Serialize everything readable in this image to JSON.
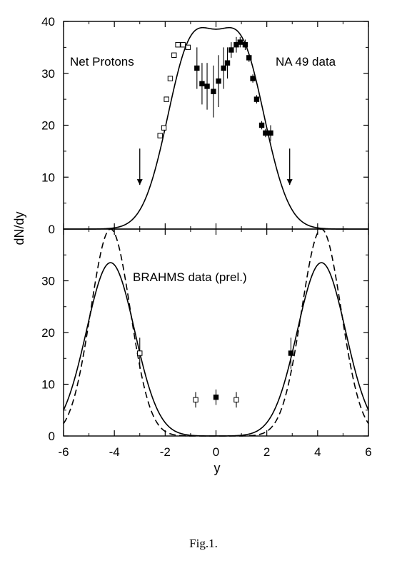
{
  "caption": "Fig.1.",
  "chart_data": [
    {
      "type": "scatter",
      "panel": "top",
      "label_left": "Net Protons",
      "label_right": "NA 49 data",
      "xlim": [
        -6,
        6
      ],
      "ylim": [
        0,
        40
      ],
      "yticks": [
        0,
        10,
        20,
        30,
        40
      ],
      "ylabel": "dN/dy",
      "grid": false,
      "series": [
        {
          "marker": "filled-square",
          "x": [
            -0.75,
            -0.55,
            -0.35,
            -0.1,
            0.1,
            0.3,
            0.45,
            0.6,
            0.8,
            0.95,
            1.15,
            1.3,
            1.45,
            1.6,
            1.8,
            1.95,
            2.15
          ],
          "y": [
            31,
            28,
            27.5,
            26.5,
            28.5,
            31,
            32,
            34.5,
            35.5,
            36,
            35.5,
            33,
            29,
            25,
            20,
            18.5,
            18.5
          ],
          "yerr": [
            4,
            4,
            4.5,
            5,
            5,
            4,
            3,
            1.5,
            1.5,
            1,
            1,
            0.8,
            0.8,
            0.8,
            0.8,
            0.8,
            1.5
          ]
        },
        {
          "marker": "open-square",
          "x": [
            -2.2,
            -2.05,
            -1.95,
            -1.8,
            -1.65,
            -1.5,
            -1.3,
            -1.1
          ],
          "y": [
            18,
            19.5,
            25,
            29,
            33.5,
            35.5,
            35.5,
            35
          ],
          "yerr": [
            0,
            0,
            0,
            0,
            0,
            0,
            0,
            0
          ]
        },
        {
          "line": "solid-fit",
          "x": [],
          "y": []
        }
      ],
      "arrows_at_x": [
        -3.0,
        2.9
      ]
    },
    {
      "type": "scatter",
      "panel": "bottom",
      "label": "BRAHMS data (prel.)",
      "xlim": [
        -6,
        6
      ],
      "ylim": [
        0,
        40
      ],
      "yticks": [
        0,
        10,
        20,
        30
      ],
      "xticks": [
        -6,
        -4,
        -2,
        0,
        2,
        4,
        6
      ],
      "xlabel": "y",
      "grid": false,
      "series": [
        {
          "marker": "filled-square",
          "x": [
            0.0,
            2.95
          ],
          "y": [
            7.5,
            16
          ],
          "yerr": [
            1.5,
            3
          ]
        },
        {
          "marker": "open-square",
          "x": [
            -0.8,
            0.8,
            -3.0
          ],
          "y": [
            7,
            7,
            16
          ],
          "yerr": [
            1.5,
            1.5,
            3
          ]
        },
        {
          "line": "solid-fit",
          "x": [],
          "y": []
        },
        {
          "line": "dashed-fit",
          "x": [],
          "y": []
        }
      ]
    }
  ]
}
